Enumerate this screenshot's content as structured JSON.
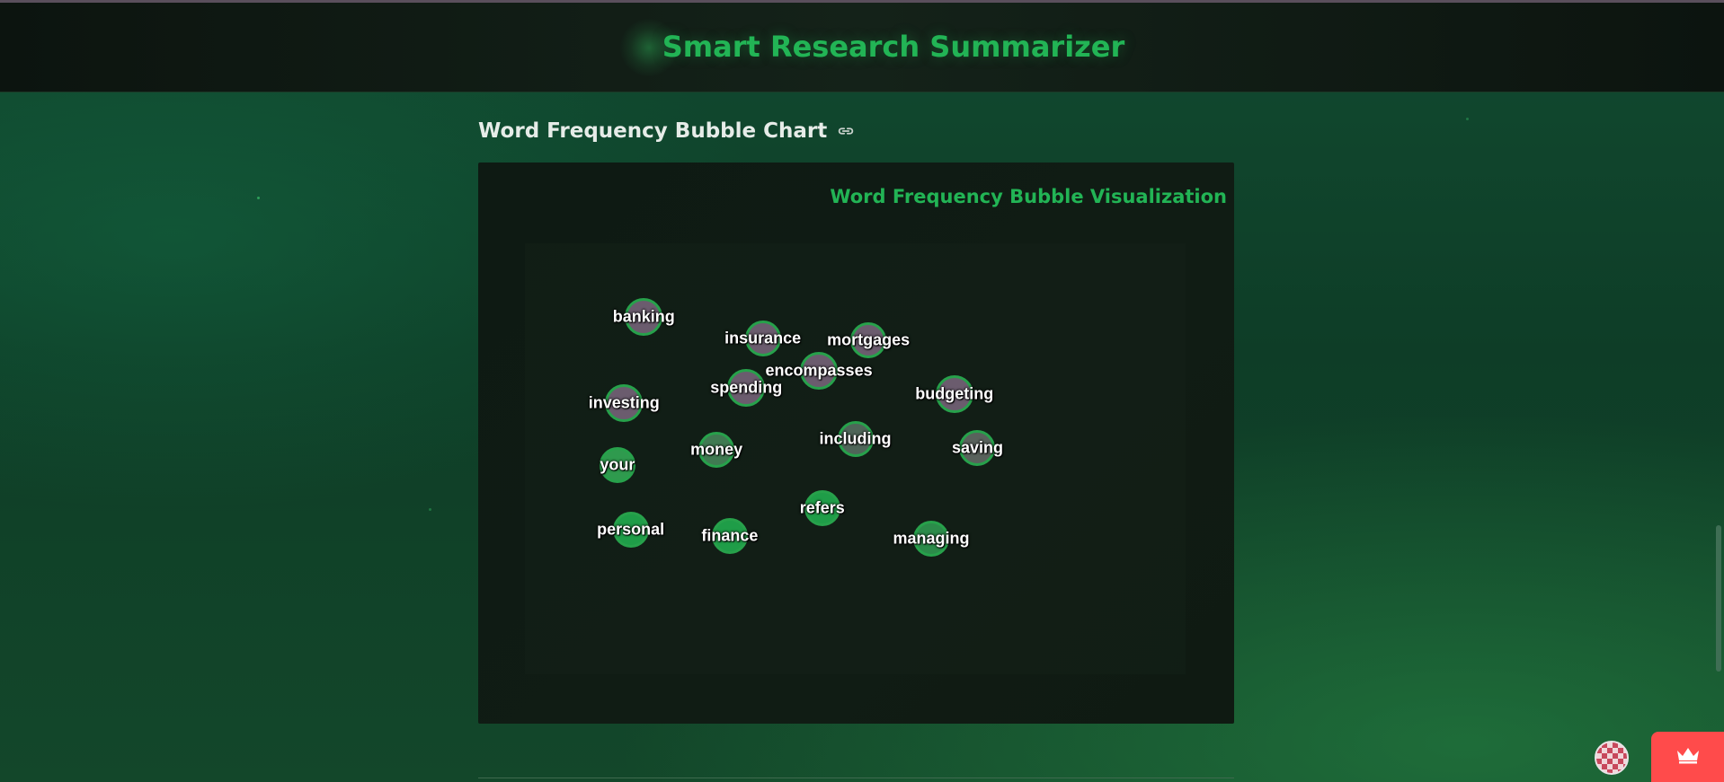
{
  "app": {
    "title": "Smart Research Summarizer"
  },
  "section": {
    "title": "Word Frequency Bubble Chart",
    "link_icon": "link-icon"
  },
  "chart_data": {
    "type": "scatter",
    "title": "Word Frequency Bubble Visualization",
    "bubbles": [
      {
        "word": "banking",
        "x": 0.18,
        "y": 0.17,
        "r": 21,
        "fill": "#6b5c6e"
      },
      {
        "word": "insurance",
        "x": 0.36,
        "y": 0.22,
        "r": 20,
        "fill": "#6b5c6e"
      },
      {
        "word": "mortgages",
        "x": 0.52,
        "y": 0.225,
        "r": 20,
        "fill": "#6b5c6e"
      },
      {
        "word": "encompasses",
        "x": 0.445,
        "y": 0.295,
        "r": 21,
        "fill": "#6b5c6e"
      },
      {
        "word": "spending",
        "x": 0.335,
        "y": 0.335,
        "r": 21,
        "fill": "#6b5c6e"
      },
      {
        "word": "budgeting",
        "x": 0.65,
        "y": 0.35,
        "r": 21,
        "fill": "#6b5c6e"
      },
      {
        "word": "investing",
        "x": 0.15,
        "y": 0.37,
        "r": 21,
        "fill": "#6b5c6e"
      },
      {
        "word": "including",
        "x": 0.5,
        "y": 0.455,
        "r": 20,
        "fill": "#4f6659"
      },
      {
        "word": "saving",
        "x": 0.685,
        "y": 0.475,
        "r": 20,
        "fill": "#59625c"
      },
      {
        "word": "money",
        "x": 0.29,
        "y": 0.48,
        "r": 20,
        "fill": "#407a52"
      },
      {
        "word": "your",
        "x": 0.14,
        "y": 0.515,
        "r": 20,
        "fill": "#2f9a4e"
      },
      {
        "word": "refers",
        "x": 0.45,
        "y": 0.615,
        "r": 20,
        "fill": "#1f9d48"
      },
      {
        "word": "personal",
        "x": 0.16,
        "y": 0.665,
        "r": 20,
        "fill": "#1f9d48"
      },
      {
        "word": "finance",
        "x": 0.31,
        "y": 0.68,
        "r": 20,
        "fill": "#1f9d48"
      },
      {
        "word": "managing",
        "x": 0.615,
        "y": 0.685,
        "r": 20,
        "fill": "#2c8b4a"
      }
    ]
  },
  "colors": {
    "accent": "#22b455",
    "bubble_border": "#27a14b",
    "action_button": "#ff4b4b"
  },
  "widgets": {
    "avatar_icon": "avatar-icon",
    "crown_icon": "crown-icon"
  }
}
